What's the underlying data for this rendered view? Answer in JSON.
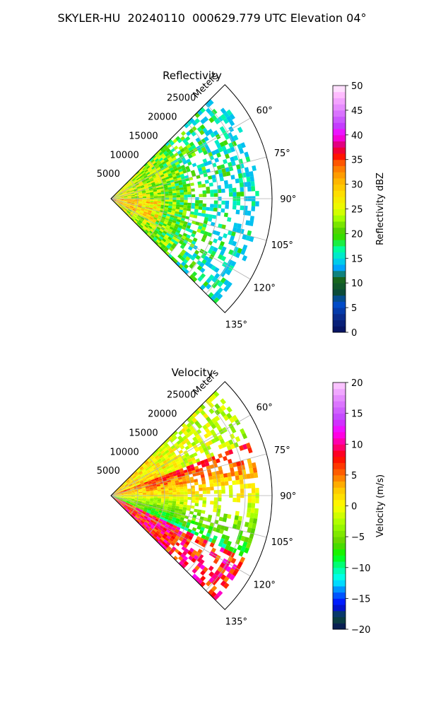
{
  "figure_title": "SKYLER-HU  20240110  000629.779 UTC Elevation 04°",
  "chart_data": [
    {
      "type": "heatmap",
      "title": "Reflectivity",
      "projection": "polar sector",
      "radial_axis_label": "Meters",
      "radial_ticks": [
        "5000",
        "10000",
        "15000",
        "20000",
        "25000"
      ],
      "radial_tick_values": [
        5000,
        10000,
        15000,
        20000,
        25000
      ],
      "azimuth_ticks": [
        "60°",
        "75°",
        "90°",
        "105°",
        "120°",
        "135°"
      ],
      "azimuth_tick_values": [
        60,
        75,
        90,
        105,
        120,
        135
      ],
      "azimuth_range": [
        45,
        135
      ],
      "radial_range": [
        0,
        30000
      ],
      "grid": true,
      "colorbar": {
        "label": "Reflectivity dBZ",
        "range": [
          0,
          50
        ],
        "ticks": [
          "0",
          "5",
          "10",
          "15",
          "20",
          "25",
          "30",
          "35",
          "40",
          "45",
          "50"
        ],
        "tick_values": [
          0,
          5,
          10,
          15,
          20,
          25,
          30,
          35,
          40,
          45,
          50
        ],
        "colors": [
          "#08105a",
          "#0a2a8a",
          "#0050d0",
          "#0a4a3a",
          "#1a6a1a",
          "#00a0ff",
          "#00e0e0",
          "#00ff9a",
          "#30e000",
          "#5ad000",
          "#a0ff00",
          "#e8ff00",
          "#ffe000",
          "#ffb000",
          "#ff6a00",
          "#ff0000",
          "#e0007a",
          "#ff00ff",
          "#c040ff",
          "#e080ff",
          "#ffb8ff",
          "#fff0ff"
        ],
        "color_stops": [
          0,
          3,
          6,
          8,
          11,
          13,
          15,
          17,
          19,
          21,
          23,
          25,
          28,
          31,
          34,
          36,
          38,
          40,
          42,
          45,
          48,
          50
        ]
      }
    },
    {
      "type": "heatmap",
      "title": "Velocity",
      "projection": "polar sector",
      "radial_axis_label": "Meters",
      "radial_ticks": [
        "5000",
        "10000",
        "15000",
        "20000",
        "25000"
      ],
      "radial_tick_values": [
        5000,
        10000,
        15000,
        20000,
        25000
      ],
      "azimuth_ticks": [
        "60°",
        "75°",
        "90°",
        "105°",
        "120°",
        "135°"
      ],
      "azimuth_tick_values": [
        60,
        75,
        90,
        105,
        120,
        135
      ],
      "azimuth_range": [
        45,
        135
      ],
      "radial_range": [
        0,
        30000
      ],
      "grid": true,
      "colorbar": {
        "label": "Velocity (m/s)",
        "range": [
          -20,
          20
        ],
        "ticks": [
          "−20",
          "−15",
          "−10",
          "−5",
          "0",
          "5",
          "10",
          "15",
          "20"
        ],
        "tick_values": [
          -20,
          -15,
          -10,
          -5,
          0,
          5,
          10,
          15,
          20
        ],
        "colors": [
          "#08105a",
          "#0a4a3a",
          "#0000ff",
          "#0070ff",
          "#00ffff",
          "#00ff9a",
          "#00ff00",
          "#60d000",
          "#a0ff00",
          "#ffff00",
          "#ffc000",
          "#ff7000",
          "#ff0000",
          "#ff0090",
          "#ff00ff",
          "#c040ff",
          "#e080ff",
          "#ffd0ff"
        ],
        "color_stops": [
          -20,
          -18,
          -16,
          -14,
          -12,
          -10,
          -8,
          -6,
          -3,
          0,
          3,
          5,
          8,
          10,
          12,
          14,
          17,
          20
        ]
      }
    }
  ]
}
